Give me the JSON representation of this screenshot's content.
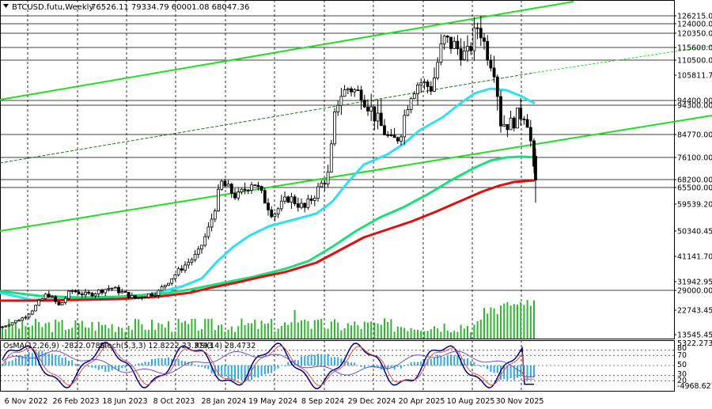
{
  "header": {
    "symbol": "BTCUSD.futu,Weekly",
    "ohlc": "76526.11 79334.79 60001.08 68047.36"
  },
  "indicator_header": {
    "osma": "OsMA(12,26,9) -2822.0780",
    "stoch": "Stoch(5,3,3) 12.8222 23.3793",
    "rsi": "RSI(14) 28.4732"
  },
  "colors": {
    "background": "#ffffff",
    "grid": "#000000",
    "bull_candle": "#ffffff",
    "bear_candle": "#000000",
    "volume": "#2eb82e",
    "ma_cyan": "#2fe0f0",
    "ma_green": "#19e07a",
    "ma_red": "#e01010",
    "channel": "#22dd22",
    "channel_dark": "#1a7a1a",
    "osma": "#33aadd",
    "stoch_main": "#000080",
    "stoch_signal": "#e05050",
    "rsi": "#6a50c8"
  },
  "price_axis": {
    "labels": [
      "126215.00",
      "124000.00",
      "120350.00",
      "115600.00",
      "110500.00",
      "105811.70",
      "94400.00",
      "94300.00",
      "84770.00",
      "76100.00",
      "68200.00",
      "65500.00",
      "59539.20",
      "50340.45",
      "41141.70",
      "31942.95",
      "29000.00",
      "22743.45",
      "13545.45"
    ]
  },
  "indicator_axis": {
    "labels": [
      "5322.2737",
      "80",
      "70",
      "50",
      "30",
      "20",
      "-4968.6279"
    ]
  },
  "time_axis": {
    "labels": [
      "6 Nov 2022",
      "26 Feb 2023",
      "18 Jun 2023",
      "8 Oct 2023",
      "28 Jan 2024",
      "19 May 2024",
      "8 Sep 2024",
      "29 Dec 2024",
      "20 Apr 2025",
      "10 Aug 2025",
      "30 Nov 2025"
    ]
  },
  "chart_data": {
    "type": "candlestick",
    "title": "BTCUSD.futu,Weekly",
    "timeframe": "Weekly",
    "last_bar": {
      "open": 76526.11,
      "high": 79334.79,
      "low": 60001.08,
      "close": 68047.36
    },
    "ylim": [
      13545.45,
      130000
    ],
    "horizontal_levels": [
      126215.0,
      124000.0,
      120350.0,
      115600.0,
      110500.0,
      94400.0,
      94300.0,
      84770.0,
      76100.0,
      68200.0,
      65500.0,
      29000.0
    ],
    "weekly_closes": [
      {
        "date": "6 Nov 2022",
        "value": 16500
      },
      {
        "date": "26 Feb 2023",
        "value": 23500
      },
      {
        "date": "18 Jun 2023",
        "value": 26500
      },
      {
        "date": "8 Oct 2023",
        "value": 27900
      },
      {
        "date": "28 Jan 2024",
        "value": 43000
      },
      {
        "date": "19 May 2024",
        "value": 67000
      },
      {
        "date": "8 Sep 2024",
        "value": 55000
      },
      {
        "date": "29 Dec 2024",
        "value": 94000
      },
      {
        "date": "20 Apr 2025",
        "value": 93500
      },
      {
        "date": "10 Aug 2025",
        "value": 119000
      },
      {
        "date": "30 Nov 2025",
        "value": 91000
      }
    ],
    "moving_averages": [
      {
        "color": "cyan",
        "start": 28000,
        "end": 93000
      },
      {
        "color": "green",
        "start": 28500,
        "end": 76100
      },
      {
        "color": "red",
        "start": 26000,
        "end": 68200
      }
    ],
    "indicators": {
      "osma": {
        "value": -2822.078,
        "range": [
          -4968.6279,
          5322.2737
        ]
      },
      "stoch": {
        "main": 12.8222,
        "signal": 23.3793,
        "levels": [
          80,
          70,
          50,
          30,
          20
        ]
      },
      "rsi": {
        "value": 28.4732
      }
    }
  }
}
